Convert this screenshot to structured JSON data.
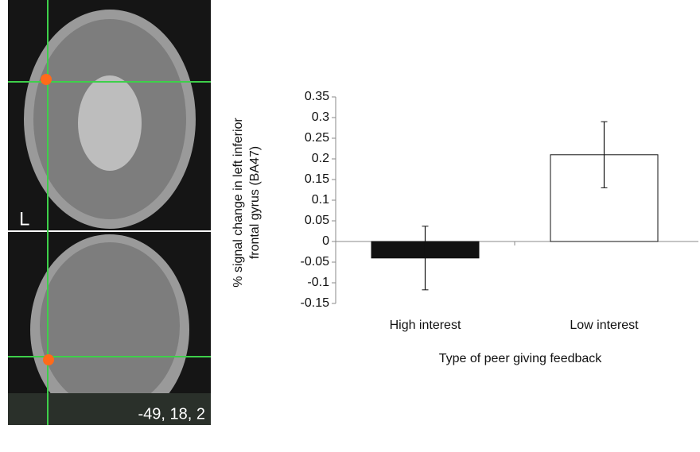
{
  "chart_data": {
    "type": "bar",
    "ylabel": [
      "% signal change in left inferior",
      "frontal gyrus (BA47)"
    ],
    "xlabel": "Type of peer giving feedback",
    "categories": [
      "High interest",
      "Low interest"
    ],
    "values": [
      -0.04,
      0.21
    ],
    "errors": [
      0.077,
      0.08
    ],
    "colors": [
      "#111111",
      "#ffffff"
    ],
    "ylim": [
      -0.15,
      0.35
    ],
    "yticks": [
      -0.15,
      -0.1,
      -0.05,
      0,
      0.05,
      0.1,
      0.15,
      0.2,
      0.25,
      0.3,
      0.35
    ]
  },
  "images": {
    "hemisphere": "L",
    "coordinates": "-49, 18, 2"
  }
}
